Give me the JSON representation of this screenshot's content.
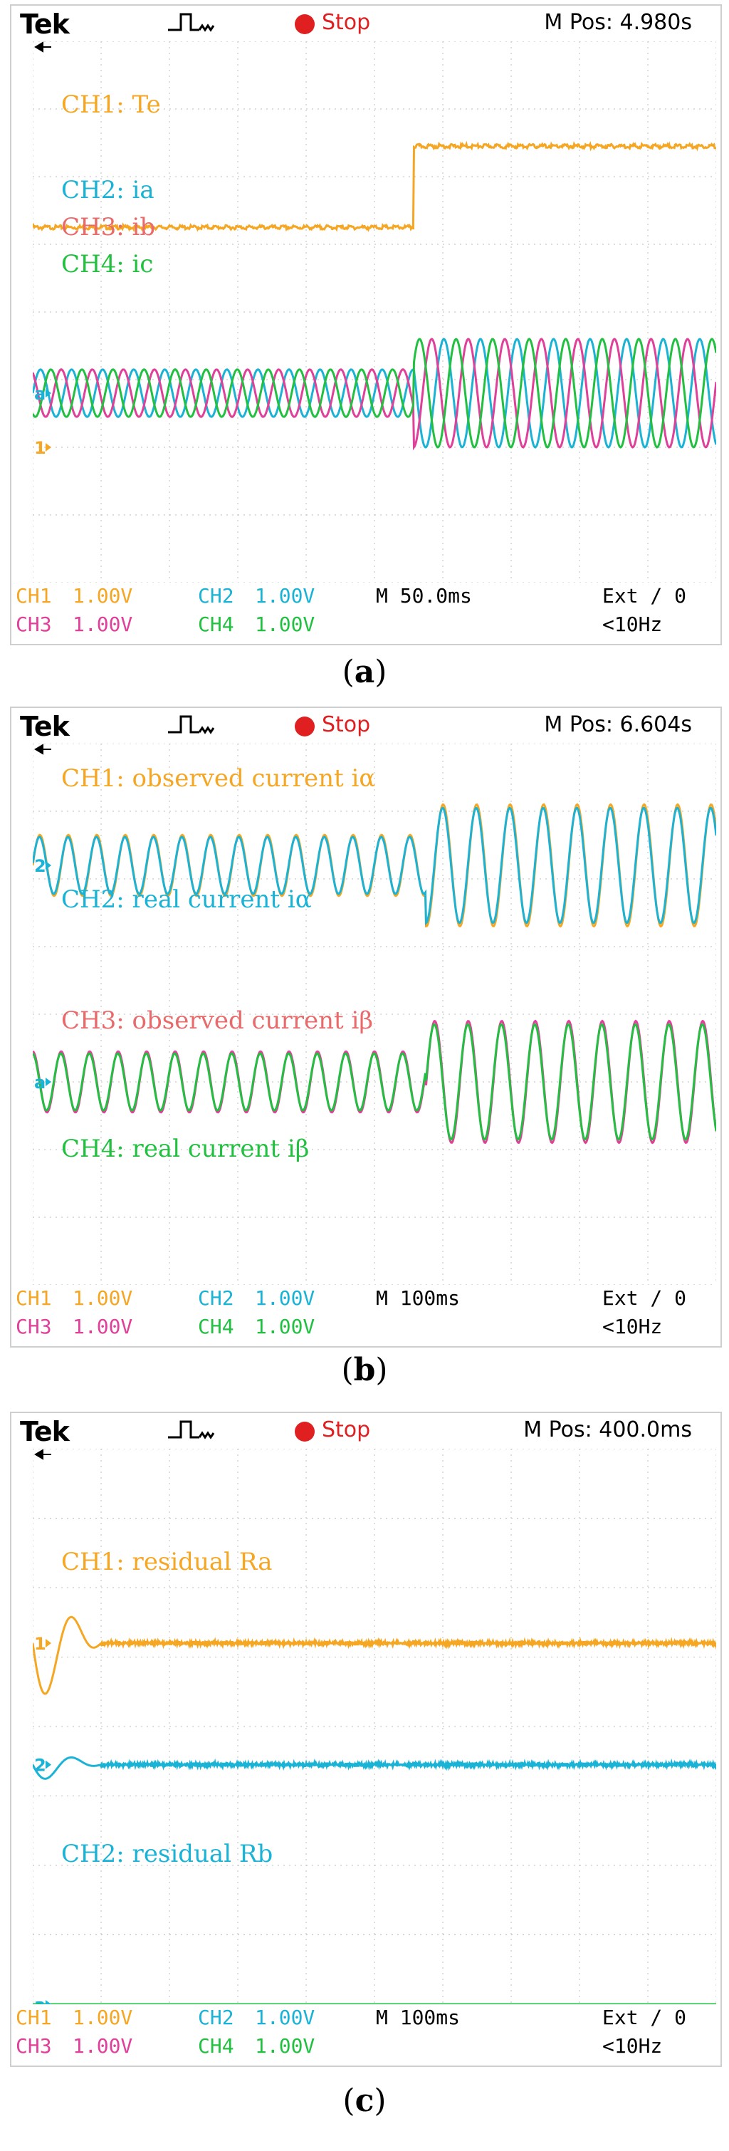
{
  "colors": {
    "ch1": "#f5a623",
    "ch2": "#1ab3d6",
    "ch3": "#e0409a",
    "ch4": "#22c040",
    "ch3_label": "#e86a6a",
    "grid": "#bdbdbd",
    "stop": "#e02020"
  },
  "chart_data": [
    {
      "type": "line",
      "panel_label": "a",
      "header": {
        "brand": "Tek",
        "status": "Stop",
        "m_pos": "M Pos: 4.980s"
      },
      "footer": {
        "ch1": "CH1",
        "ch1_scale": "1.00V",
        "ch2": "CH2",
        "ch2_scale": "1.00V",
        "ch3": "CH3",
        "ch3_scale": "1.00V",
        "ch4": "CH4",
        "ch4_scale": "1.00V",
        "timebase": "M 50.0ms",
        "trigger": "Ext ∕ 0",
        "freq": "<10Hz"
      },
      "ground_markers": [
        "1",
        "a"
      ],
      "series": [
        {
          "name": "CH1: Te",
          "kind": "step",
          "before": 1.25,
          "after": 2.45,
          "step_at": 0.557
        },
        {
          "name": "CH2: ia",
          "kind": "sine",
          "center": -1.2,
          "amp_before": 0.35,
          "amp_after": 0.8,
          "cycles": 22,
          "phase": 0,
          "step_at": 0.557
        },
        {
          "name": "CH3: ib",
          "kind": "sine",
          "center": -1.2,
          "amp_before": 0.35,
          "amp_after": 0.8,
          "cycles": 22,
          "phase": 2.094,
          "step_at": 0.557
        },
        {
          "name": "CH4: ic",
          "kind": "sine",
          "center": -1.2,
          "amp_before": 0.35,
          "amp_after": 0.8,
          "cycles": 22,
          "phase": 4.189,
          "step_at": 0.557
        }
      ]
    },
    {
      "type": "line",
      "panel_label": "b",
      "header": {
        "brand": "Tek",
        "status": "Stop",
        "m_pos": "M Pos: 6.604s"
      },
      "footer": {
        "ch1": "CH1",
        "ch1_scale": "1.00V",
        "ch2": "CH2",
        "ch2_scale": "1.00V",
        "ch3": "CH3",
        "ch3_scale": "1.00V",
        "ch4": "CH4",
        "ch4_scale": "1.00V",
        "timebase": "M 100ms",
        "trigger": "Ext ∕ 0",
        "freq": "<10Hz"
      },
      "ground_markers": [
        "2",
        "a"
      ],
      "series": [
        {
          "name": "CH1: observed current iα",
          "kind": "sine",
          "center": 2.2,
          "amp_before": 0.45,
          "amp_after": 0.9,
          "cycles": 24,
          "phase": 0,
          "step_at": 0.575
        },
        {
          "name": "CH2: real current iα",
          "kind": "sine",
          "center": 2.2,
          "amp_before": 0.42,
          "amp_after": 0.85,
          "cycles": 24,
          "phase": 0.08,
          "step_at": 0.575
        },
        {
          "name": "CH3: observed current iβ",
          "kind": "sine",
          "center": -1.0,
          "amp_before": 0.45,
          "amp_after": 0.9,
          "cycles": 24,
          "phase": 1.571,
          "step_at": 0.575
        },
        {
          "name": "CH4: real current iβ",
          "kind": "sine",
          "center": -1.0,
          "amp_before": 0.42,
          "amp_after": 0.85,
          "cycles": 24,
          "phase": 1.65,
          "step_at": 0.575
        }
      ]
    },
    {
      "type": "line",
      "panel_label": "c",
      "header": {
        "brand": "Tek",
        "status": "Stop",
        "m_pos": "M Pos: 400.0ms"
      },
      "footer": {
        "ch1": "CH1",
        "ch1_scale": "1.00V",
        "ch2": "CH2",
        "ch2_scale": "1.00V",
        "ch3": "CH3",
        "ch3_scale": "1.00V",
        "ch4": "CH4",
        "ch4_scale": "1.00V",
        "timebase": "M 100ms",
        "trigger": "Ext ∕ 0",
        "freq": "<10Hz"
      },
      "ground_markers": [
        "1",
        "2",
        "a"
      ],
      "series": [
        {
          "name": "CH1: residual Ra",
          "kind": "residual",
          "center": 1.2,
          "dip": -0.9,
          "settle_at": 0.1
        },
        {
          "name": "CH2: residual Rb",
          "kind": "residual",
          "center": -0.55,
          "dip": -0.25,
          "settle_at": 0.1
        },
        {
          "name": "CH3",
          "kind": "flat",
          "center": -4.0
        },
        {
          "name": "CH4",
          "kind": "flat",
          "center": -4.0
        }
      ]
    }
  ]
}
